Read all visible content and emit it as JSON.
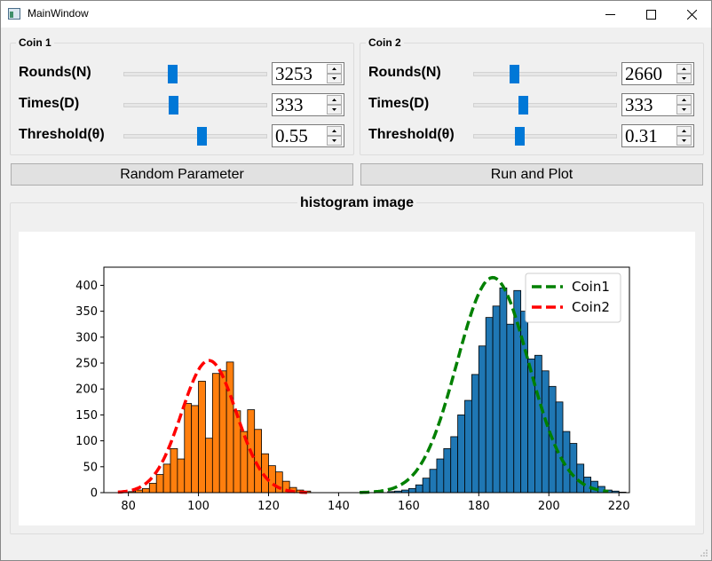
{
  "window": {
    "title": "MainWindow",
    "icon": "app-window-icon"
  },
  "coin1": {
    "title": "Coin 1",
    "rows": [
      {
        "label": "Rounds(N)",
        "value": "3253",
        "slider": 0.33
      },
      {
        "label": "Times(D)",
        "value": "333",
        "slider": 0.333
      },
      {
        "label": "Threshold(θ)",
        "value": "0.55",
        "slider": 0.55
      }
    ]
  },
  "coin2": {
    "title": "Coin 2",
    "rows": [
      {
        "label": "Rounds(N)",
        "value": "2660",
        "slider": 0.27
      },
      {
        "label": "Times(D)",
        "value": "333",
        "slider": 0.333
      },
      {
        "label": "Threshold(θ)",
        "value": "0.31",
        "slider": 0.31
      }
    ]
  },
  "buttons": {
    "random": "Random Parameter",
    "run": "Run and Plot"
  },
  "histogram": {
    "title": "histogram image"
  },
  "chart_data": {
    "type": "bar",
    "xlim": [
      73,
      223
    ],
    "ylim": [
      0,
      435
    ],
    "xticks": [
      80,
      100,
      120,
      140,
      160,
      180,
      200,
      220
    ],
    "yticks": [
      0,
      50,
      100,
      150,
      200,
      250,
      300,
      350,
      400
    ],
    "legend_position": "top-right",
    "series": [
      {
        "name": "Coin1",
        "color": "#1f77b4",
        "curve_color": "#008000",
        "bin_width": 2,
        "bins_start": 154,
        "counts": [
          2,
          3,
          5,
          8,
          15,
          28,
          45,
          65,
          85,
          108,
          150,
          178,
          228,
          283,
          338,
          360,
          395,
          325,
          390,
          350,
          258,
          265,
          235,
          205,
          175,
          118,
          95,
          55,
          30,
          22,
          12,
          5,
          3,
          1
        ],
        "curve": {
          "mean": 184,
          "peak": 415,
          "sd": 10.2,
          "range": [
            146,
            217
          ]
        }
      },
      {
        "name": "Coin2",
        "color": "#ff7f0e",
        "curve_color": "#ff0000",
        "bin_width": 2,
        "bins_start": 80,
        "counts": [
          2,
          5,
          8,
          18,
          35,
          55,
          85,
          65,
          172,
          168,
          215,
          105,
          230,
          235,
          252,
          158,
          118,
          160,
          122,
          75,
          52,
          40,
          22,
          10,
          5,
          3
        ],
        "curve": {
          "mean": 103,
          "peak": 255,
          "sd": 7.8,
          "range": [
            77,
            131
          ]
        }
      }
    ]
  }
}
